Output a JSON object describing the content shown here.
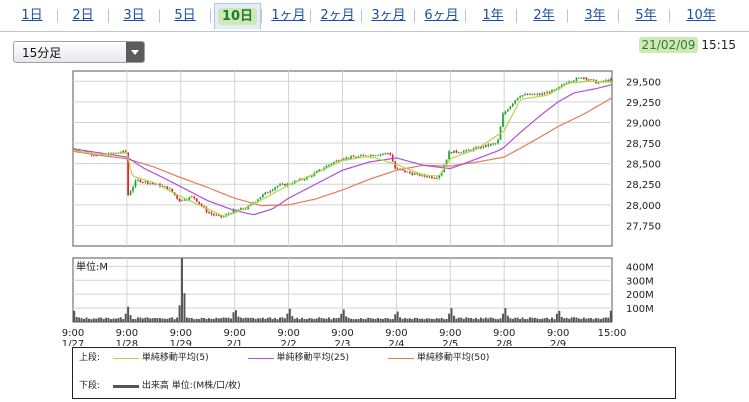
{
  "tabs": [
    {
      "label": "1日",
      "active": false
    },
    {
      "label": "2日",
      "active": false
    },
    {
      "label": "3日",
      "active": false
    },
    {
      "label": "5日",
      "active": false
    },
    {
      "label": "10日",
      "active": true
    },
    {
      "label": "1ヶ月",
      "active": false
    },
    {
      "label": "2ヶ月",
      "active": false
    },
    {
      "label": "3ヶ月",
      "active": false
    },
    {
      "label": "6ヶ月",
      "active": false
    },
    {
      "label": "1年",
      "active": false
    },
    {
      "label": "2年",
      "active": false
    },
    {
      "label": "3年",
      "active": false
    },
    {
      "label": "5年",
      "active": false
    },
    {
      "label": "10年",
      "active": false
    }
  ],
  "interval_select": {
    "value": "15分足"
  },
  "datetime": {
    "date": "21/02/09",
    "time": "15:15"
  },
  "legend": {
    "upper_label": "上段:",
    "lower_label": "下段:",
    "ma5": "単純移動平均(5)",
    "ma25": "単純移動平均(25)",
    "ma50": "単純移動平均(50)",
    "volume": "出来高 単位:(M株/口/枚)"
  },
  "colors": {
    "accent": "#2e7d32",
    "ma5": "#b5d44a",
    "ma25": "#b04fd8",
    "ma50": "#e07d5c",
    "up": "#1aa830",
    "down": "#d9262a",
    "volume": "#555555"
  },
  "chart_data": [
    {
      "type": "line",
      "series_label": "price",
      "ylim": [
        27500,
        29625
      ],
      "yticks": [
        "29,500",
        "29,250",
        "29,000",
        "28,750",
        "28,500",
        "28,250",
        "28,000",
        "27,750"
      ],
      "ytick_values": [
        29500,
        29250,
        29000,
        28750,
        28500,
        28250,
        28000,
        27750
      ],
      "x_labels": [
        {
          "line1": "9:00",
          "line2": "1/27"
        },
        {
          "line1": "9:00",
          "line2": "1/28"
        },
        {
          "line1": "9:00",
          "line2": "1/29"
        },
        {
          "line1": "9:00",
          "line2": "2/1"
        },
        {
          "line1": "9:00",
          "line2": "2/2"
        },
        {
          "line1": "9:00",
          "line2": "2/3"
        },
        {
          "line1": "9:00",
          "line2": "2/4"
        },
        {
          "line1": "9:00",
          "line2": "2/5"
        },
        {
          "line1": "9:00",
          "line2": "2/8"
        },
        {
          "line1": "9:00",
          "line2": "2/9"
        },
        {
          "line1": "15:00",
          "line2": ""
        }
      ],
      "price_anchors": [
        [
          0,
          28680
        ],
        [
          0.25,
          28640
        ],
        [
          0.5,
          28600
        ],
        [
          0.75,
          28620
        ],
        [
          1,
          28650
        ],
        [
          1.03,
          28100
        ],
        [
          1.2,
          28300
        ],
        [
          1.5,
          28260
        ],
        [
          1.8,
          28200
        ],
        [
          2,
          28050
        ],
        [
          2.25,
          28100
        ],
        [
          2.5,
          27920
        ],
        [
          2.62,
          27880
        ],
        [
          2.8,
          27850
        ],
        [
          3,
          27930
        ],
        [
          3.25,
          27960
        ],
        [
          3.5,
          28100
        ],
        [
          3.8,
          28230
        ],
        [
          4,
          28250
        ],
        [
          4.4,
          28340
        ],
        [
          4.8,
          28500
        ],
        [
          5,
          28560
        ],
        [
          5.5,
          28600
        ],
        [
          5.9,
          28630
        ],
        [
          6,
          28440
        ],
        [
          6.3,
          28380
        ],
        [
          6.55,
          28350
        ],
        [
          6.75,
          28330
        ],
        [
          6.85,
          28380
        ],
        [
          7,
          28640
        ],
        [
          7.3,
          28650
        ],
        [
          7.7,
          28720
        ],
        [
          7.9,
          28750
        ],
        [
          8,
          29100
        ],
        [
          8.3,
          29330
        ],
        [
          8.7,
          29340
        ],
        [
          9,
          29400
        ],
        [
          9.2,
          29500
        ],
        [
          9.5,
          29550
        ],
        [
          9.75,
          29480
        ],
        [
          10,
          29520
        ]
      ],
      "ma5_anchors": [
        [
          0,
          28660
        ],
        [
          0.5,
          28610
        ],
        [
          1,
          28630
        ],
        [
          1.1,
          28350
        ],
        [
          1.5,
          28270
        ],
        [
          2,
          28100
        ],
        [
          2.5,
          27950
        ],
        [
          2.8,
          27860
        ],
        [
          3,
          27900
        ],
        [
          3.5,
          28060
        ],
        [
          4,
          28240
        ],
        [
          4.5,
          28380
        ],
        [
          5,
          28540
        ],
        [
          5.5,
          28590
        ],
        [
          6,
          28490
        ],
        [
          6.5,
          28360
        ],
        [
          6.8,
          28350
        ],
        [
          7,
          28560
        ],
        [
          7.5,
          28680
        ],
        [
          8,
          28900
        ],
        [
          8.3,
          29280
        ],
        [
          8.8,
          29330
        ],
        [
          9.2,
          29480
        ],
        [
          9.6,
          29500
        ],
        [
          10,
          29490
        ]
      ],
      "ma25_anchors": [
        [
          0,
          28680
        ],
        [
          0.4,
          28640
        ],
        [
          1,
          28580
        ],
        [
          1.3,
          28450
        ],
        [
          1.7,
          28320
        ],
        [
          2,
          28220
        ],
        [
          2.5,
          28050
        ],
        [
          3,
          27930
        ],
        [
          3.35,
          27880
        ],
        [
          3.7,
          27950
        ],
        [
          4,
          28080
        ],
        [
          4.5,
          28250
        ],
        [
          5,
          28420
        ],
        [
          5.5,
          28520
        ],
        [
          6,
          28570
        ],
        [
          6.5,
          28480
        ],
        [
          7,
          28440
        ],
        [
          7.5,
          28560
        ],
        [
          7.9,
          28660
        ],
        [
          8,
          28700
        ],
        [
          8.3,
          28880
        ],
        [
          8.7,
          29100
        ],
        [
          9,
          29250
        ],
        [
          9.3,
          29360
        ],
        [
          9.7,
          29410
        ],
        [
          10,
          29460
        ]
      ],
      "ma50_anchors": [
        [
          0,
          28650
        ],
        [
          0.5,
          28600
        ],
        [
          1,
          28560
        ],
        [
          1.5,
          28460
        ],
        [
          2,
          28330
        ],
        [
          2.5,
          28210
        ],
        [
          3,
          28080
        ],
        [
          3.5,
          27990
        ],
        [
          4,
          28000
        ],
        [
          4.5,
          28070
        ],
        [
          5,
          28180
        ],
        [
          5.5,
          28310
        ],
        [
          6,
          28420
        ],
        [
          6.5,
          28480
        ],
        [
          7,
          28470
        ],
        [
          7.5,
          28520
        ],
        [
          8,
          28580
        ],
        [
          8.5,
          28760
        ],
        [
          9,
          28950
        ],
        [
          9.5,
          29110
        ],
        [
          10,
          29300
        ]
      ]
    },
    {
      "type": "bar",
      "series_label": "volume",
      "unit_label": "単位:M",
      "ylim": [
        0,
        460
      ],
      "yticks": [
        "400M",
        "300M",
        "200M",
        "100M"
      ],
      "ytick_values": [
        400,
        300,
        200,
        100
      ],
      "open_spikes": [
        80,
        110,
        460,
        85,
        95,
        90,
        75,
        100,
        100,
        80
      ],
      "close_spikes": [
        70,
        60,
        120,
        70,
        60,
        60,
        55,
        60,
        60,
        60,
        80
      ],
      "baseline": 20
    }
  ]
}
